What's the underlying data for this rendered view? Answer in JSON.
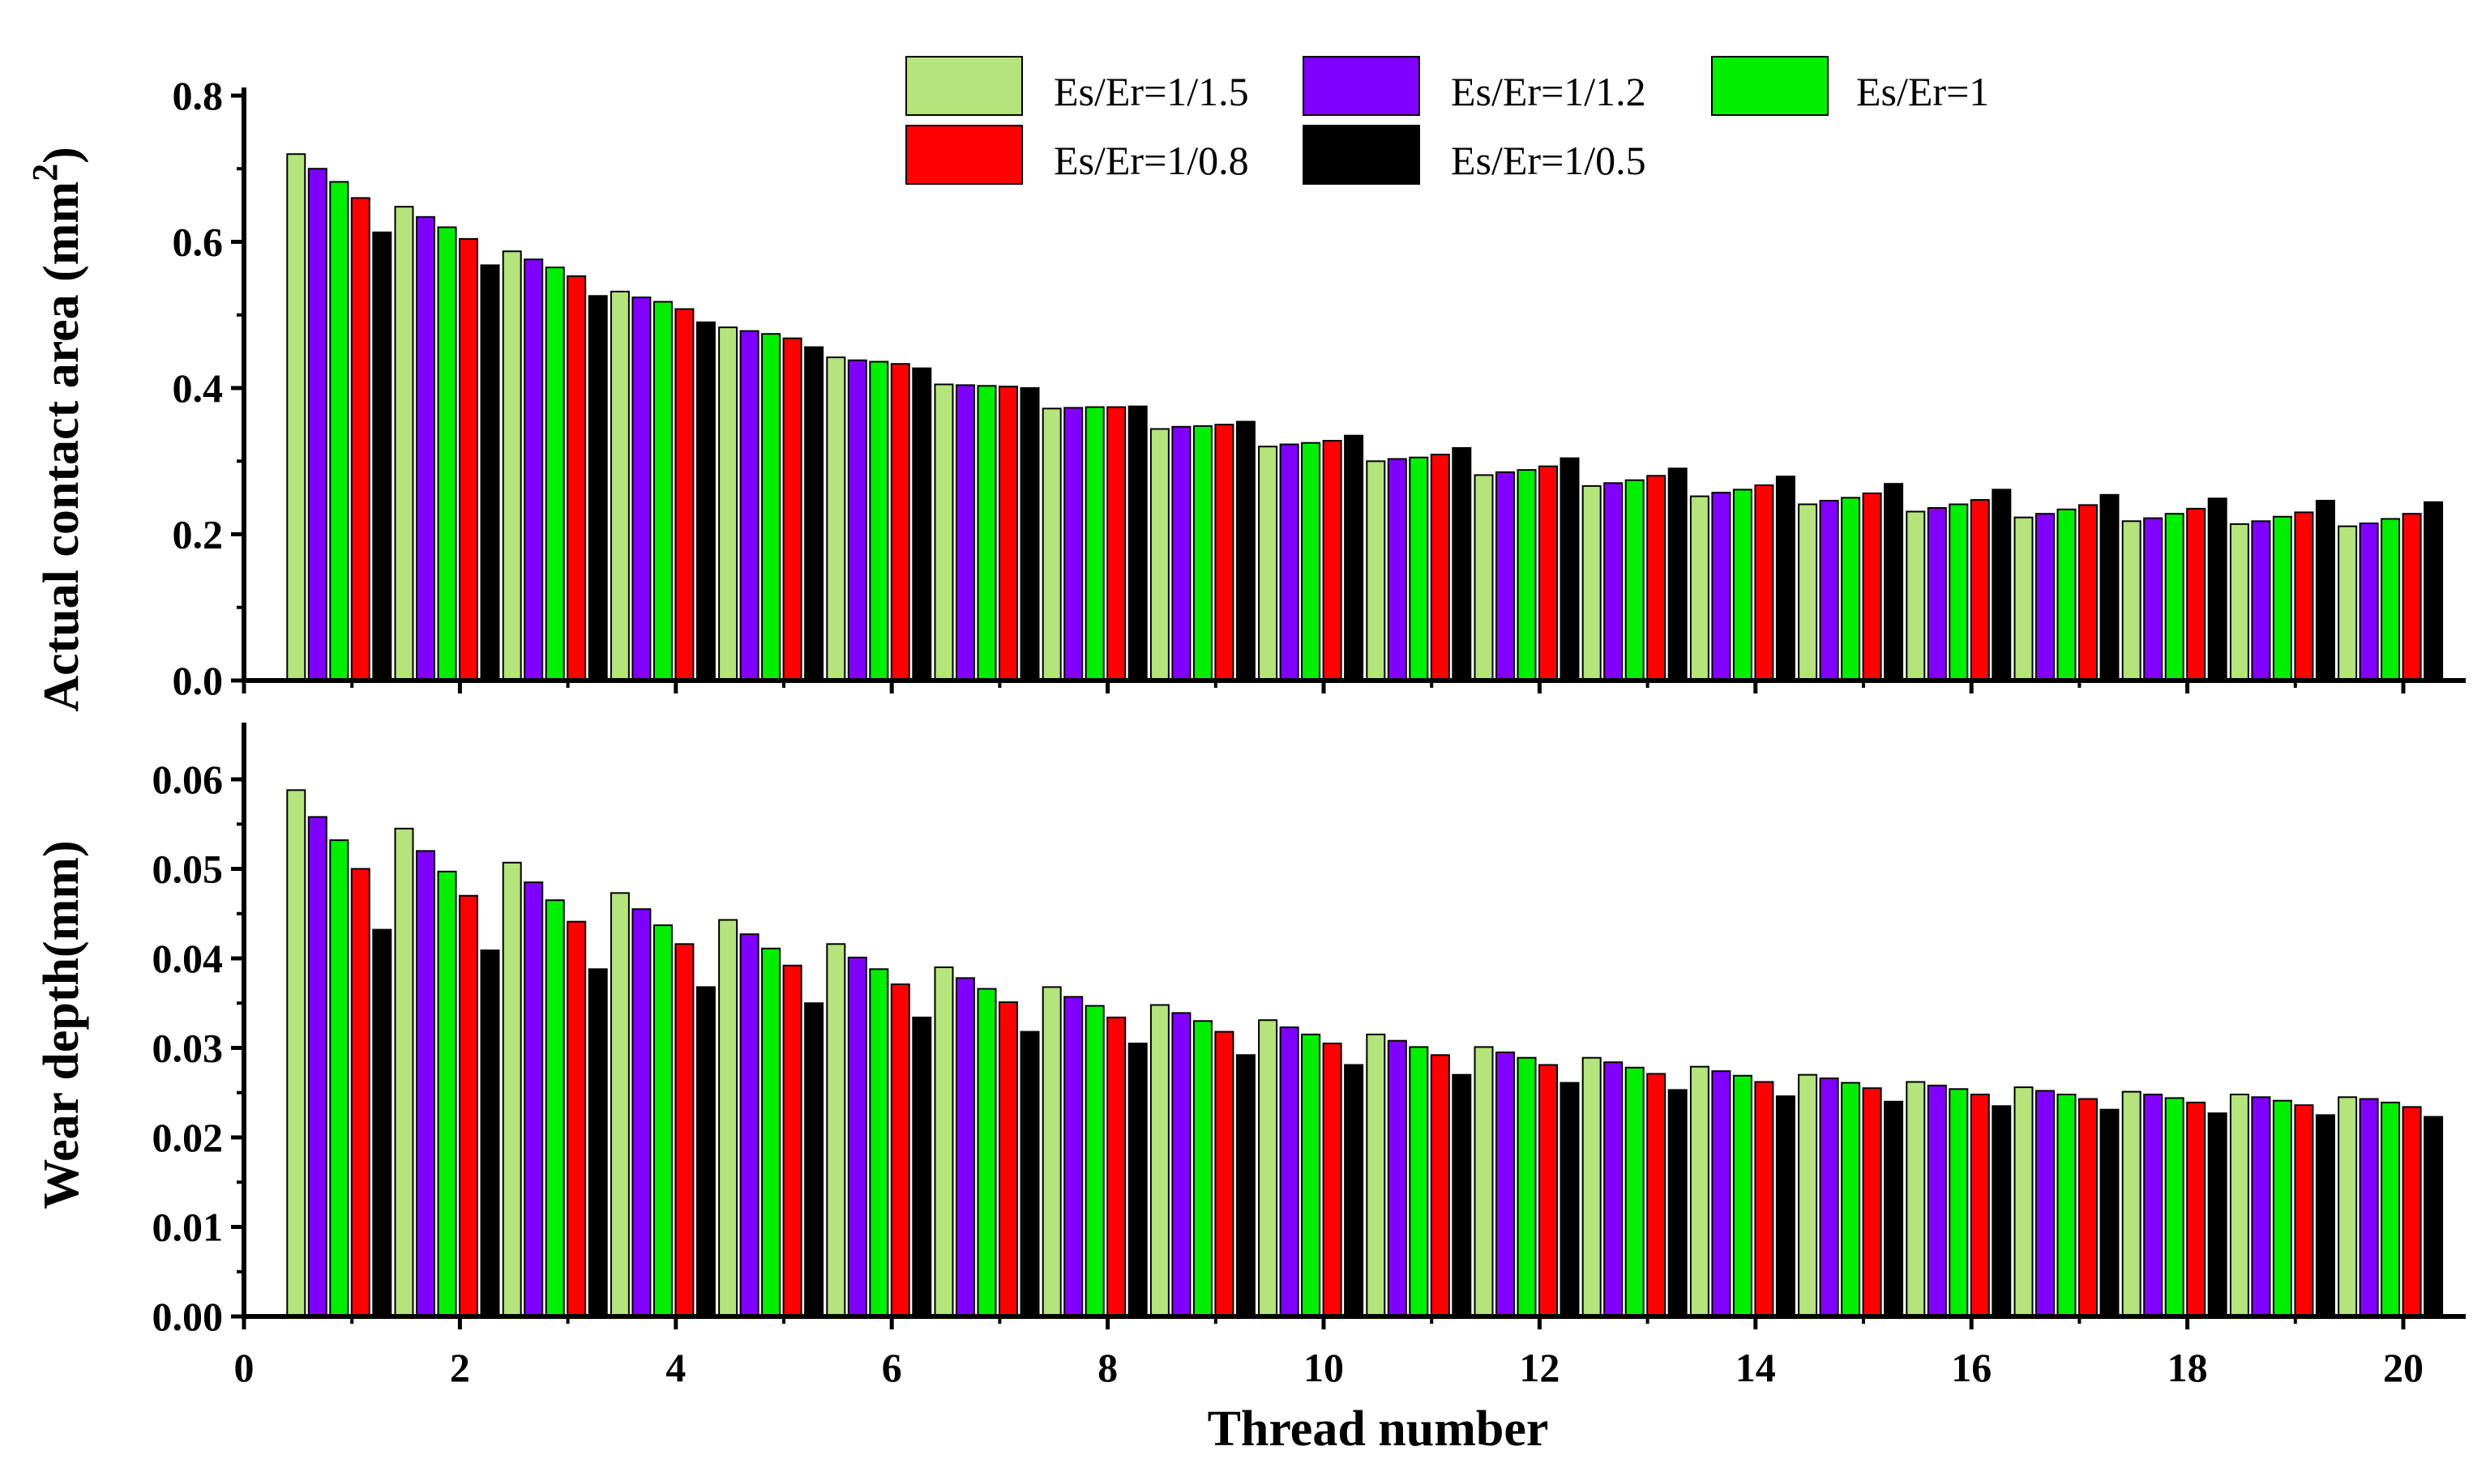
{
  "chart_data": [
    {
      "type": "bar",
      "panel": "top",
      "ylabel": "Actual contact area (mm",
      "ylabel_superscript": "2",
      "ylabel_suffix": ")",
      "ylim": [
        0,
        0.8
      ],
      "yticks": [
        0.0,
        0.2,
        0.4,
        0.6,
        0.8
      ],
      "ytick_labels": [
        "0.0",
        "0.2",
        "0.4",
        "0.6",
        "0.8"
      ],
      "categories": [
        1,
        2,
        3,
        4,
        5,
        6,
        7,
        8,
        9,
        10,
        11,
        12,
        13,
        14,
        15,
        16,
        17,
        18,
        19,
        20
      ],
      "series": [
        {
          "name": "Es/Er=1/1.5",
          "color": "#b5e37c",
          "values": [
            0.72,
            0.648,
            0.587,
            0.532,
            0.483,
            0.442,
            0.405,
            0.372,
            0.344,
            0.32,
            0.3,
            0.281,
            0.266,
            0.252,
            0.241,
            0.231,
            0.223,
            0.218,
            0.214,
            0.211
          ]
        },
        {
          "name": "Es/Er=1/1.2",
          "color": "#7f00ff",
          "values": [
            0.7,
            0.634,
            0.576,
            0.524,
            0.478,
            0.438,
            0.404,
            0.373,
            0.347,
            0.323,
            0.303,
            0.285,
            0.27,
            0.257,
            0.246,
            0.236,
            0.228,
            0.222,
            0.218,
            0.215
          ]
        },
        {
          "name": "Es/Er=1",
          "color": "#00ee00",
          "values": [
            0.682,
            0.62,
            0.565,
            0.518,
            0.474,
            0.436,
            0.403,
            0.374,
            0.348,
            0.325,
            0.305,
            0.288,
            0.274,
            0.261,
            0.25,
            0.241,
            0.234,
            0.228,
            0.224,
            0.221
          ]
        },
        {
          "name": "Es/Er=1/0.8",
          "color": "#ff0000",
          "values": [
            0.66,
            0.604,
            0.553,
            0.508,
            0.468,
            0.433,
            0.402,
            0.374,
            0.35,
            0.328,
            0.309,
            0.293,
            0.28,
            0.267,
            0.256,
            0.247,
            0.24,
            0.235,
            0.23,
            0.228
          ]
        },
        {
          "name": "Es/Er=1/0.5",
          "color": "#000000",
          "values": [
            0.613,
            0.568,
            0.526,
            0.49,
            0.456,
            0.427,
            0.4,
            0.375,
            0.354,
            0.335,
            0.318,
            0.304,
            0.29,
            0.279,
            0.269,
            0.261,
            0.254,
            0.249,
            0.246,
            0.244
          ]
        }
      ]
    },
    {
      "type": "bar",
      "panel": "bottom",
      "ylabel": "Wear depth(mm)",
      "xlabel": "Thread number",
      "ylim": [
        0,
        0.065
      ],
      "yticks": [
        0.0,
        0.01,
        0.02,
        0.03,
        0.04,
        0.05,
        0.06
      ],
      "ytick_labels": [
        "0.00",
        "0.01",
        "0.02",
        "0.03",
        "0.04",
        "0.05",
        "0.06"
      ],
      "xlim": [
        0,
        20.6
      ],
      "xticks": [
        0,
        2,
        4,
        6,
        8,
        10,
        12,
        14,
        16,
        18,
        20
      ],
      "xtick_labels": [
        "0",
        "2",
        "4",
        "6",
        "8",
        "10",
        "12",
        "14",
        "16",
        "18",
        "20"
      ],
      "categories": [
        1,
        2,
        3,
        4,
        5,
        6,
        7,
        8,
        9,
        10,
        11,
        12,
        13,
        14,
        15,
        16,
        17,
        18,
        19,
        20
      ],
      "series": [
        {
          "name": "Es/Er=1/1.5",
          "color": "#b5e37c",
          "values": [
            0.0588,
            0.0545,
            0.0507,
            0.0473,
            0.0443,
            0.0416,
            0.039,
            0.0368,
            0.0348,
            0.0331,
            0.0315,
            0.0301,
            0.0289,
            0.0279,
            0.027,
            0.0262,
            0.0256,
            0.0251,
            0.0248,
            0.0245
          ]
        },
        {
          "name": "Es/Er=1/1.2",
          "color": "#7f00ff",
          "values": [
            0.0558,
            0.052,
            0.0485,
            0.0455,
            0.0427,
            0.0401,
            0.0378,
            0.0357,
            0.0339,
            0.0323,
            0.0308,
            0.0295,
            0.0284,
            0.0274,
            0.0266,
            0.0258,
            0.0252,
            0.0248,
            0.0245,
            0.0243
          ]
        },
        {
          "name": "Es/Er=1",
          "color": "#00ee00",
          "values": [
            0.0532,
            0.0497,
            0.0465,
            0.0437,
            0.0411,
            0.0388,
            0.0366,
            0.0347,
            0.033,
            0.0315,
            0.0301,
            0.0289,
            0.0278,
            0.0269,
            0.0261,
            0.0254,
            0.0248,
            0.0244,
            0.0241,
            0.0239
          ]
        },
        {
          "name": "Es/Er=1/0.8",
          "color": "#ff0000",
          "values": [
            0.05,
            0.047,
            0.0441,
            0.0416,
            0.0392,
            0.0371,
            0.0351,
            0.0334,
            0.0318,
            0.0305,
            0.0292,
            0.0281,
            0.0271,
            0.0262,
            0.0255,
            0.0248,
            0.0243,
            0.0239,
            0.0236,
            0.0234
          ]
        },
        {
          "name": "Es/Er=1/0.5",
          "color": "#000000",
          "values": [
            0.0432,
            0.0409,
            0.0388,
            0.0368,
            0.035,
            0.0334,
            0.0318,
            0.0305,
            0.0292,
            0.0281,
            0.027,
            0.0261,
            0.0253,
            0.0246,
            0.024,
            0.0235,
            0.0231,
            0.0227,
            0.0225,
            0.0223
          ]
        }
      ]
    }
  ],
  "legend": [
    {
      "label": "Es/Er=1/1.5",
      "color": "#b5e37c"
    },
    {
      "label": "Es/Er=1/1.2",
      "color": "#7f00ff"
    },
    {
      "label": "Es/Er=1",
      "color": "#00ee00"
    },
    {
      "label": "Es/Er=1/0.8",
      "color": "#ff0000"
    },
    {
      "label": "Es/Er=1/0.5",
      "color": "#000000"
    }
  ]
}
